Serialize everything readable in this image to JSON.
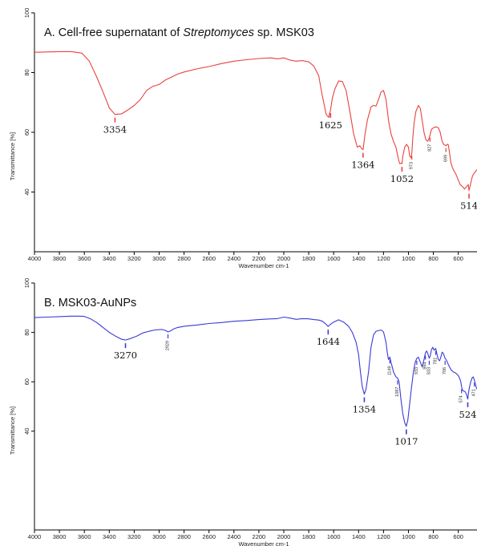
{
  "chart_data": [
    {
      "type": "line",
      "title_prefix": "A. Cell-free supernatant of ",
      "title_italic": "Streptomyces",
      "title_suffix": " sp. MSK03",
      "xlabel": "Wavenumber cm-1",
      "ylabel": "Transmittance [%]",
      "xlim": [
        4000,
        450
      ],
      "ylim": [
        20,
        100
      ],
      "x_ticks": [
        "4000",
        "3800",
        "3600",
        "3400",
        "3200",
        "3000",
        "2800",
        "2600",
        "2400",
        "2200",
        "2000",
        "1800",
        "1600",
        "1400",
        "1200",
        "1000",
        "800",
        "600"
      ],
      "y_ticks": [
        "100",
        "80",
        "60",
        "40"
      ],
      "grid": false,
      "series": [
        {
          "color": "#e8423f",
          "x": [
            4000,
            3900,
            3800,
            3700,
            3620,
            3560,
            3500,
            3450,
            3400,
            3354,
            3300,
            3250,
            3200,
            3150,
            3100,
            3050,
            3000,
            2950,
            2900,
            2850,
            2800,
            2700,
            2600,
            2500,
            2400,
            2300,
            2200,
            2100,
            2050,
            2000,
            1950,
            1900,
            1850,
            1800,
            1760,
            1720,
            1690,
            1660,
            1640,
            1625,
            1610,
            1590,
            1560,
            1530,
            1500,
            1470,
            1440,
            1410,
            1390,
            1375,
            1364,
            1350,
            1330,
            1300,
            1280,
            1260,
            1240,
            1220,
            1200,
            1180,
            1160,
            1140,
            1120,
            1100,
            1080,
            1070,
            1060,
            1052,
            1045,
            1030,
            1015,
            1000,
            990,
            980,
            973,
            965,
            955,
            940,
            920,
            905,
            890,
            875,
            860,
            845,
            835,
            827,
            815,
            800,
            780,
            760,
            745,
            730,
            715,
            705,
            699,
            690,
            680,
            670,
            660,
            650,
            640,
            620,
            600,
            585,
            570,
            560,
            550,
            540,
            530,
            520,
            514,
            505,
            495,
            485,
            470,
            450
          ],
          "y": [
            86.8,
            86.9,
            87.0,
            87.0,
            86.5,
            83.8,
            78.5,
            73.5,
            68.2,
            66.0,
            66.2,
            67.5,
            69.0,
            71.0,
            74.0,
            75.4,
            76.0,
            77.5,
            78.5,
            79.5,
            80.2,
            81.2,
            82.0,
            83.0,
            83.8,
            84.3,
            84.7,
            84.9,
            84.6,
            84.9,
            84.2,
            83.8,
            84.0,
            83.6,
            82.2,
            79.0,
            72.0,
            66.0,
            65.0,
            67.5,
            71.5,
            74.5,
            77.2,
            77.0,
            74.0,
            67.0,
            59.5,
            55.0,
            55.5,
            54.5,
            54.2,
            59.0,
            64.0,
            68.5,
            69.0,
            68.8,
            71.0,
            73.5,
            74.0,
            71.0,
            64.0,
            59.5,
            57.0,
            55.0,
            51.0,
            49.5,
            49.6,
            49.5,
            52.0,
            55.0,
            56.0,
            55.0,
            52.0,
            51.5,
            53.0,
            58.0,
            63.0,
            67.0,
            69.0,
            68.0,
            64.0,
            60.0,
            57.5,
            57.0,
            57.8,
            59.0,
            61.0,
            61.5,
            61.8,
            61.5,
            60.0,
            57.0,
            55.8,
            55.7,
            55.5,
            56.0,
            55.8,
            53.0,
            50.0,
            48.5,
            47.5,
            46.0,
            44.0,
            42.5,
            42.0,
            41.5,
            41.0,
            41.5,
            42.0,
            42.5,
            40.5,
            42.0,
            44.0,
            45.5,
            46.5,
            47.5
          ]
        }
      ],
      "annotations": [
        {
          "label": "3354",
          "x": 3354,
          "size": "big"
        },
        {
          "label": "1625",
          "x": 1625,
          "size": "big"
        },
        {
          "label": "1364",
          "x": 1364,
          "size": "big"
        },
        {
          "label": "1052",
          "x": 1052,
          "size": "big"
        },
        {
          "label": "514",
          "x": 514,
          "size": "big"
        },
        {
          "label": "973",
          "x": 973,
          "size": "small"
        },
        {
          "label": "827",
          "x": 827,
          "size": "small"
        },
        {
          "label": "699",
          "x": 699,
          "size": "small"
        }
      ]
    },
    {
      "type": "line",
      "title_prefix": "B. MSK03-AuNPs",
      "title_italic": "",
      "title_suffix": "",
      "xlabel": "Wavenumber cm-1",
      "ylabel": "Transmittance [%]",
      "xlim": [
        4000,
        450
      ],
      "ylim": [
        0,
        100
      ],
      "x_ticks": [
        "4000",
        "3800",
        "3600",
        "3400",
        "3200",
        "3000",
        "2800",
        "2600",
        "2400",
        "2200",
        "2000",
        "1800",
        "1600",
        "1400",
        "1200",
        "1000",
        "800",
        "600"
      ],
      "y_ticks": [
        "100",
        "80",
        "60",
        "40"
      ],
      "grid": false,
      "series": [
        {
          "color": "#3a3ad8",
          "x": [
            4000,
            3900,
            3800,
            3700,
            3650,
            3600,
            3550,
            3500,
            3450,
            3400,
            3350,
            3300,
            3270,
            3230,
            3180,
            3130,
            3080,
            3030,
            2980,
            2950,
            2929,
            2910,
            2880,
            2850,
            2800,
            2700,
            2600,
            2500,
            2400,
            2300,
            2200,
            2100,
            2050,
            2000,
            1950,
            1900,
            1850,
            1800,
            1760,
            1720,
            1690,
            1665,
            1644,
            1625,
            1600,
            1560,
            1520,
            1480,
            1450,
            1420,
            1400,
            1385,
            1370,
            1354,
            1340,
            1320,
            1300,
            1280,
            1260,
            1240,
            1220,
            1200,
            1180,
            1170,
            1160,
            1149,
            1140,
            1130,
            1120,
            1100,
            1087,
            1075,
            1060,
            1045,
            1030,
            1017,
            1005,
            990,
            975,
            960,
            945,
            933,
            920,
            905,
            890,
            875,
            865,
            854,
            845,
            833,
            825,
            815,
            805,
            795,
            781,
            770,
            760,
            750,
            740,
            730,
            720,
            706,
            695,
            680,
            660,
            640,
            620,
            600,
            590,
            580,
            574,
            565,
            555,
            545,
            535,
            524,
            518,
            510,
            500,
            490,
            480,
            470,
            460,
            455,
            450
          ],
          "y": [
            86.0,
            86.2,
            86.4,
            86.6,
            86.6,
            86.5,
            85.5,
            84.0,
            82.0,
            80.0,
            78.5,
            77.2,
            76.9,
            77.5,
            78.5,
            79.8,
            80.5,
            81.0,
            81.2,
            80.8,
            80.2,
            80.6,
            81.5,
            82.0,
            82.5,
            83.0,
            83.6,
            84.0,
            84.5,
            84.8,
            85.2,
            85.5,
            85.6,
            86.2,
            85.8,
            85.3,
            85.6,
            85.5,
            85.2,
            85.0,
            84.5,
            83.5,
            82.4,
            83.3,
            84.2,
            85.1,
            84.2,
            82.5,
            80.0,
            76.0,
            71.0,
            64.0,
            58.0,
            55.0,
            57.0,
            64.0,
            74.0,
            79.0,
            80.5,
            80.7,
            81.0,
            80.2,
            76.0,
            72.0,
            69.0,
            70.0,
            68.0,
            66.0,
            64.0,
            62.0,
            61.5,
            60.0,
            53.0,
            47.0,
            43.5,
            42.0,
            44.5,
            51.0,
            58.0,
            64.0,
            68.0,
            69.5,
            70.0,
            68.0,
            66.0,
            69.0,
            71.5,
            72.5,
            71.5,
            69.5,
            70.5,
            73.0,
            74.0,
            72.8,
            73.5,
            71.0,
            69.0,
            68.5,
            70.0,
            72.0,
            71.5,
            69.5,
            68.8,
            67.0,
            65.0,
            64.0,
            63.5,
            62.5,
            61.5,
            60.0,
            58.0,
            56.5,
            56.2,
            56.0,
            55.0,
            53.0,
            55.5,
            58.0,
            60.0,
            61.5,
            62.0,
            60.5,
            58.5,
            57.5,
            57.0
          ]
        }
      ],
      "annotations": [
        {
          "label": "3270",
          "x": 3270,
          "size": "big"
        },
        {
          "label": "1644",
          "x": 1644,
          "size": "big"
        },
        {
          "label": "1354",
          "x": 1354,
          "size": "big"
        },
        {
          "label": "1017",
          "x": 1017,
          "size": "big"
        },
        {
          "label": "524",
          "x": 524,
          "size": "big"
        },
        {
          "label": "2929",
          "x": 2929,
          "size": "small"
        },
        {
          "label": "1149",
          "x": 1149,
          "size": "small"
        },
        {
          "label": "1087",
          "x": 1087,
          "size": "small"
        },
        {
          "label": "933",
          "x": 933,
          "size": "small"
        },
        {
          "label": "864",
          "x": 864,
          "size": "small"
        },
        {
          "label": "833",
          "x": 833,
          "size": "small"
        },
        {
          "label": "781",
          "x": 781,
          "size": "small"
        },
        {
          "label": "706",
          "x": 706,
          "size": "small"
        },
        {
          "label": "574",
          "x": 574,
          "size": "small"
        },
        {
          "label": "471",
          "x": 471,
          "size": "small"
        }
      ]
    }
  ]
}
